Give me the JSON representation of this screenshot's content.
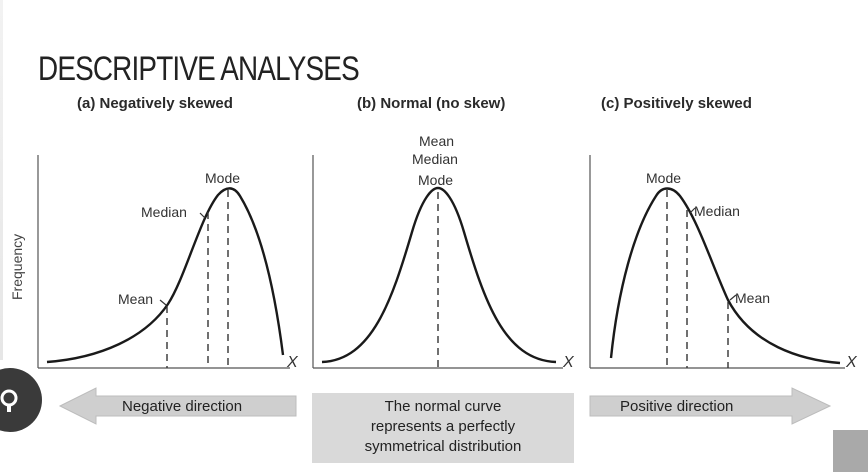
{
  "title": "DESCRIPTIVE ANALYSES",
  "y_axis_label": "Frequency",
  "panels": [
    {
      "title": "(a) Negatively skewed",
      "labels": [
        "Mode",
        "Median",
        "Mean"
      ],
      "x_label": "X"
    },
    {
      "title": "(b) Normal (no skew)",
      "labels": [
        "Mean",
        "Median",
        "Mode"
      ],
      "x_label": "X"
    },
    {
      "title": "(c) Positively skewed",
      "labels": [
        "Mode",
        "Median",
        "Mean"
      ],
      "x_label": "X"
    }
  ],
  "arrows": {
    "negative": "Negative direction",
    "positive": "Positive direction"
  },
  "normal_note": [
    "The normal curve",
    "represents a perfectly",
    "symmetrical distribution"
  ],
  "colors": {
    "curve": "#1a1a1a",
    "arrow_fill": "#cfcfcf",
    "note_box": "#d9d9d9",
    "badge": "#3a3a3a"
  },
  "icons": {
    "badge": "settings-icon"
  }
}
